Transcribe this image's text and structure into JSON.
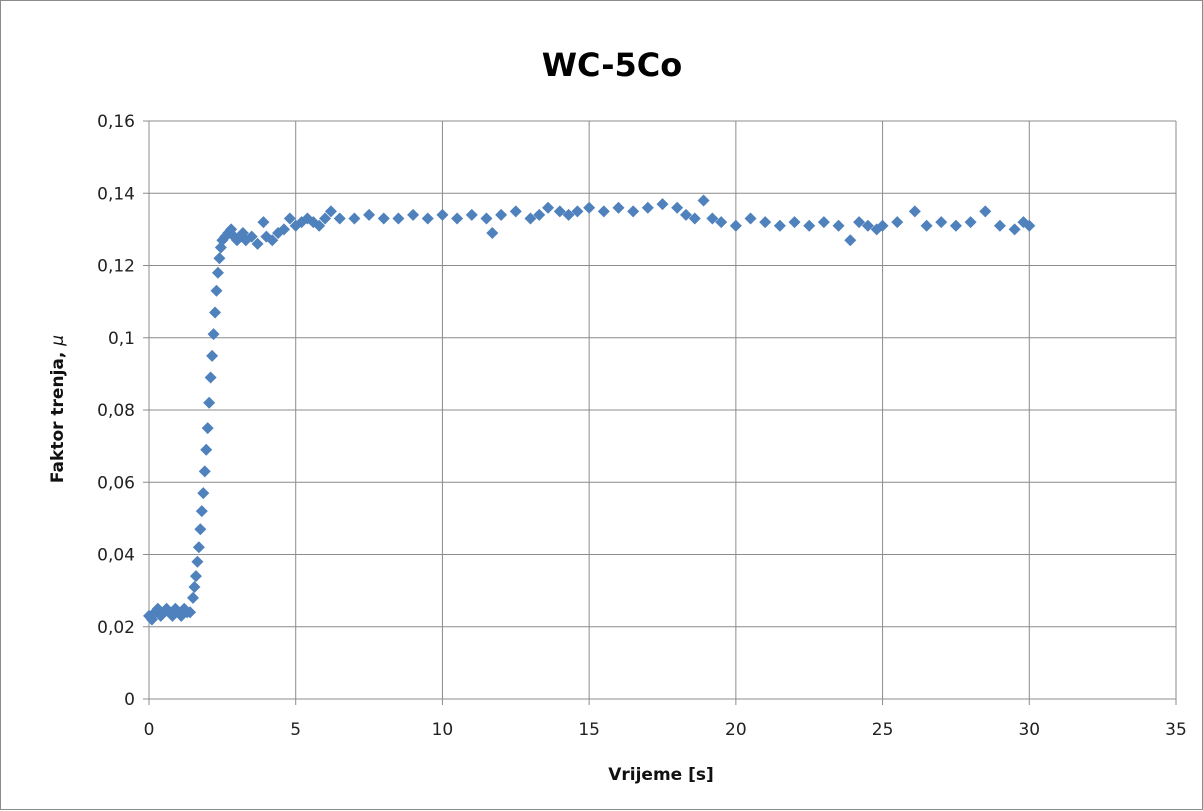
{
  "chart_data": {
    "type": "scatter",
    "title": "WC-5Co",
    "xlabel": "Vrijeme [s]",
    "ylabel_text": "Faktor trenja, ",
    "ylabel_symbol": "μ",
    "xlim": [
      0,
      35
    ],
    "ylim": [
      0,
      0.16
    ],
    "xticks": [
      0,
      5,
      10,
      15,
      20,
      25,
      30,
      35
    ],
    "yticks": [
      0,
      0.02,
      0.04,
      0.06,
      0.08,
      0.1,
      0.12,
      0.14,
      0.16
    ],
    "xtick_labels": [
      "0",
      "5",
      "10",
      "15",
      "20",
      "25",
      "30",
      "35"
    ],
    "ytick_labels": [
      "0",
      "0,02",
      "0,04",
      "0,06",
      "0,08",
      "0,1",
      "0,12",
      "0,14",
      "0,16"
    ],
    "grid": true,
    "legend": "none",
    "marker": "diamond",
    "series_color": "#4F81BD",
    "series": [
      {
        "x": [
          0.0,
          0.1,
          0.2,
          0.3,
          0.4,
          0.5,
          0.6,
          0.7,
          0.8,
          0.9,
          1.0,
          1.1,
          1.2,
          1.3,
          1.4,
          1.5,
          1.55,
          1.6,
          1.65,
          1.7,
          1.75,
          1.8,
          1.85,
          1.9,
          1.95,
          2.0,
          2.05,
          2.1,
          2.15,
          2.2,
          2.25,
          2.3,
          2.35,
          2.4,
          2.45,
          2.5,
          2.6,
          2.7,
          2.8,
          2.9,
          3.0,
          3.1,
          3.2,
          3.3,
          3.5,
          3.7,
          3.9,
          4.0,
          4.2,
          4.4,
          4.6,
          4.8,
          5.0,
          5.2,
          5.4,
          5.6,
          5.8,
          6.0,
          6.2,
          6.5,
          7.0,
          7.5,
          8.0,
          8.5,
          9.0,
          9.5,
          10.0,
          10.5,
          11.0,
          11.5,
          11.7,
          12.0,
          12.5,
          13.0,
          13.3,
          13.6,
          14.0,
          14.3,
          14.6,
          15.0,
          15.5,
          16.0,
          16.5,
          17.0,
          17.5,
          18.0,
          18.3,
          18.6,
          18.9,
          19.2,
          19.5,
          20.0,
          20.5,
          21.0,
          21.5,
          22.0,
          22.5,
          23.0,
          23.5,
          23.9,
          24.2,
          24.5,
          24.8,
          25.0,
          25.5,
          26.1,
          26.5,
          27.0,
          27.5,
          28.0,
          28.5,
          29.0,
          29.5,
          29.8,
          30.0
        ],
        "y": [
          0.023,
          0.022,
          0.024,
          0.025,
          0.023,
          0.024,
          0.025,
          0.024,
          0.023,
          0.025,
          0.024,
          0.023,
          0.025,
          0.024,
          0.024,
          0.028,
          0.031,
          0.034,
          0.038,
          0.042,
          0.047,
          0.052,
          0.057,
          0.063,
          0.069,
          0.075,
          0.082,
          0.089,
          0.095,
          0.101,
          0.107,
          0.113,
          0.118,
          0.122,
          0.125,
          0.127,
          0.128,
          0.129,
          0.13,
          0.128,
          0.127,
          0.128,
          0.129,
          0.127,
          0.128,
          0.126,
          0.132,
          0.128,
          0.127,
          0.129,
          0.13,
          0.133,
          0.131,
          0.132,
          0.133,
          0.132,
          0.131,
          0.133,
          0.135,
          0.133,
          0.133,
          0.134,
          0.133,
          0.133,
          0.134,
          0.133,
          0.134,
          0.133,
          0.134,
          0.133,
          0.129,
          0.134,
          0.135,
          0.133,
          0.134,
          0.136,
          0.135,
          0.134,
          0.135,
          0.136,
          0.135,
          0.136,
          0.135,
          0.136,
          0.137,
          0.136,
          0.134,
          0.133,
          0.138,
          0.133,
          0.132,
          0.131,
          0.133,
          0.132,
          0.131,
          0.132,
          0.131,
          0.132,
          0.131,
          0.127,
          0.132,
          0.131,
          0.13,
          0.131,
          0.132,
          0.135,
          0.131,
          0.132,
          0.131,
          0.132,
          0.135,
          0.131,
          0.13,
          0.132,
          0.131
        ]
      }
    ]
  }
}
